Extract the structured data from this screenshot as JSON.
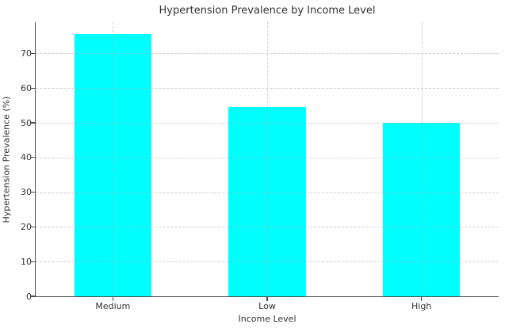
{
  "chart_data": {
    "type": "bar",
    "title": "Hypertension Prevalence by Income Level",
    "xlabel": "Income Level",
    "ylabel": "Hypertension Prevalence (%)",
    "categories": [
      "Medium",
      "Low",
      "High"
    ],
    "values": [
      75.5,
      54.5,
      50.0
    ],
    "yticks": [
      0,
      10,
      20,
      30,
      40,
      50,
      60,
      70
    ],
    "ylim": [
      0,
      79
    ],
    "bar_color": "#00FFFF",
    "grid": "on",
    "grid_style": "dashed",
    "grid_color": "#cccccc",
    "text_color": "#333333",
    "spine_color": "#4a4a4a",
    "background_color": "#ffffff",
    "bar_width_fraction": 0.5,
    "legend": "none"
  }
}
